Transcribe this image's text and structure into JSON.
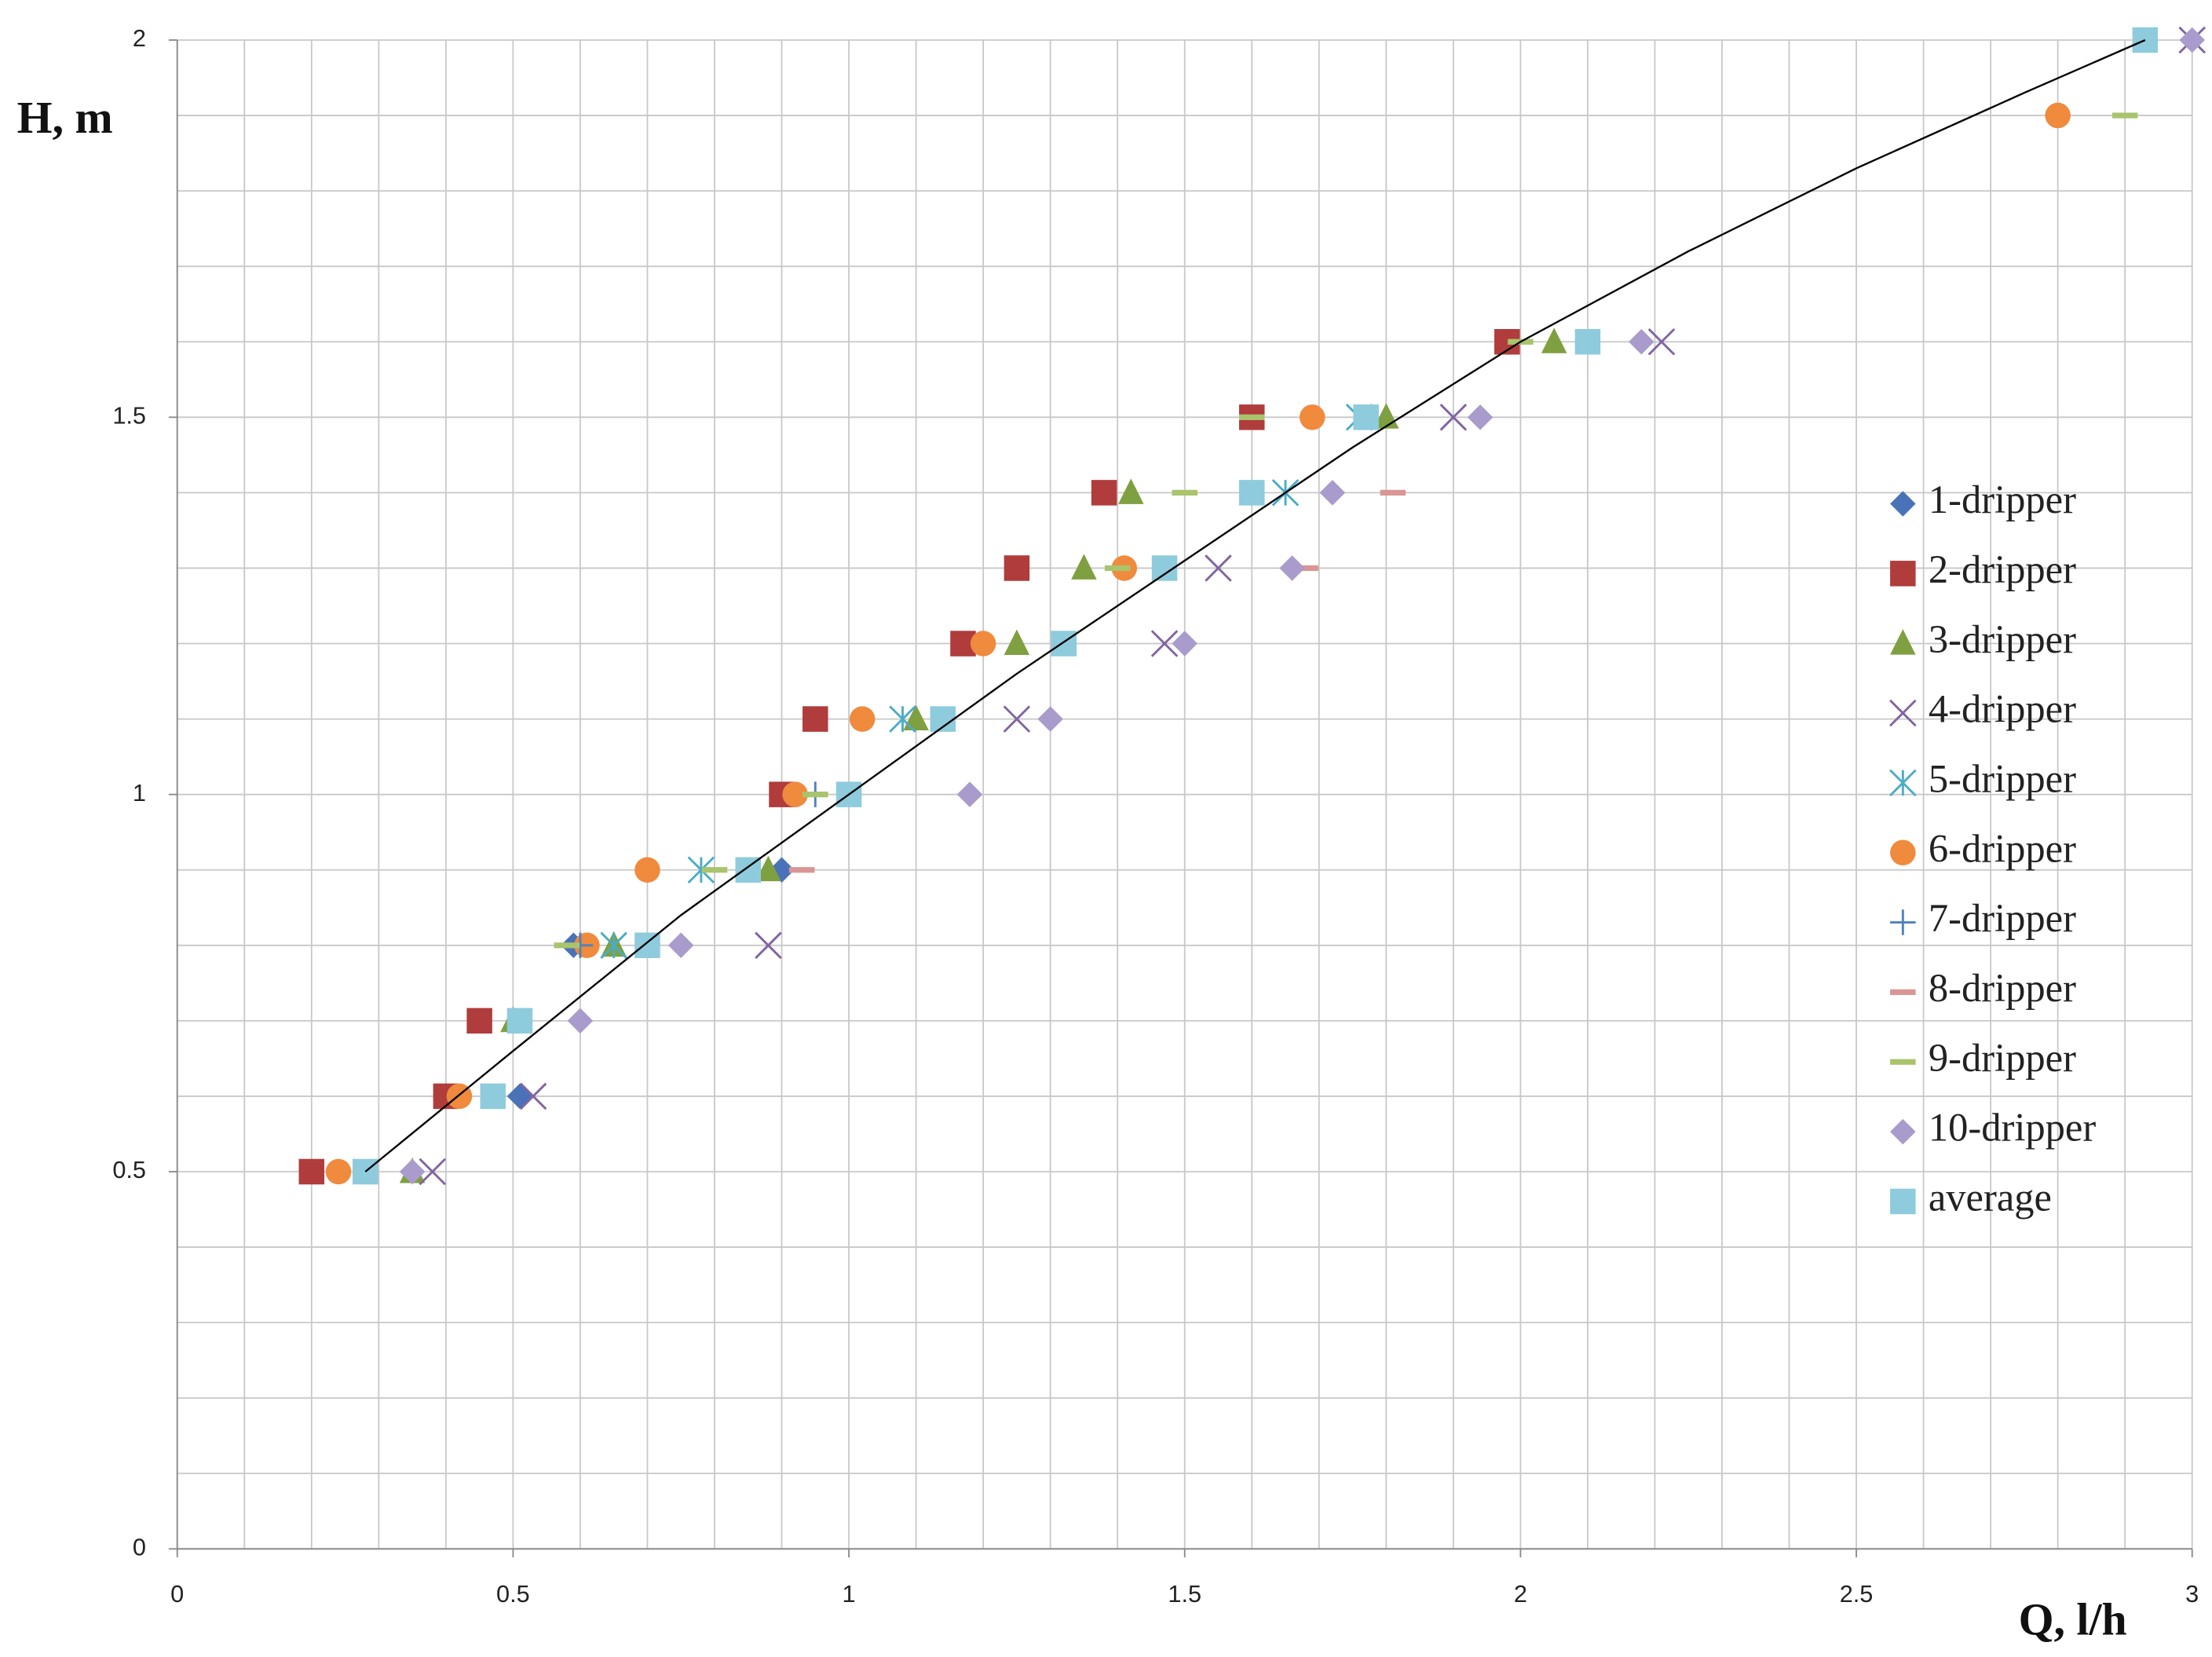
{
  "chart_data": {
    "type": "scatter",
    "x_label": "Q, l/h",
    "y_label": "H, m",
    "xlim": [
      0,
      3
    ],
    "ylim": [
      0,
      2
    ],
    "xticks": [
      0,
      0.5,
      1,
      1.5,
      2,
      2.5,
      3
    ],
    "yticks": [
      0,
      0.5,
      1,
      1.5,
      2
    ],
    "grid": true,
    "minor_grid_per_tick": 5,
    "legend": "right",
    "series": [
      {
        "name": "1-dripper",
        "color": "#4a72b8",
        "marker": "diamond",
        "x": [
          0.51,
          0.9,
          0.59
        ],
        "y": [
          0.6,
          0.9,
          0.8
        ]
      },
      {
        "name": "2-dripper",
        "color": "#b03c3c",
        "marker": "square",
        "x": [
          0.2,
          0.4,
          0.45,
          0.9,
          0.95,
          1.17,
          1.25,
          1.38,
          1.6,
          1.98
        ],
        "y": [
          0.5,
          0.6,
          0.7,
          1.0,
          1.1,
          1.2,
          1.3,
          1.4,
          1.5,
          1.6
        ]
      },
      {
        "name": "3-dripper",
        "color": "#7fa040",
        "marker": "triangle",
        "x": [
          0.35,
          0.5,
          0.65,
          0.88,
          1.1,
          1.25,
          1.35,
          1.42,
          1.8,
          2.05
        ],
        "y": [
          0.5,
          0.7,
          0.8,
          0.9,
          1.1,
          1.2,
          1.3,
          1.4,
          1.5,
          1.6
        ]
      },
      {
        "name": "4-dripper",
        "color": "#8064a2",
        "marker": "x",
        "x": [
          0.38,
          0.53,
          0.88,
          1.25,
          1.47,
          1.55,
          1.9,
          2.21,
          3.0
        ],
        "y": [
          0.5,
          0.6,
          0.8,
          1.1,
          1.2,
          1.3,
          1.5,
          1.6,
          2.0
        ]
      },
      {
        "name": "5-dripper",
        "color": "#4bacc6",
        "marker": "asterisk",
        "x": [
          0.65,
          0.78,
          1.08,
          1.65,
          1.76
        ],
        "y": [
          0.8,
          0.9,
          1.1,
          1.4,
          1.5
        ]
      },
      {
        "name": "6-dripper",
        "color": "#f08a3c",
        "marker": "circle",
        "x": [
          0.24,
          0.42,
          0.61,
          0.7,
          0.92,
          1.02,
          1.2,
          1.41,
          1.69,
          2.8
        ],
        "y": [
          0.5,
          0.6,
          0.8,
          0.9,
          1.0,
          1.1,
          1.2,
          1.3,
          1.5,
          1.9
        ]
      },
      {
        "name": "7-dripper",
        "color": "#4f81bd",
        "marker": "plus",
        "x": [
          0.95,
          0.6
        ],
        "y": [
          1.0,
          0.8
        ]
      },
      {
        "name": "8-dripper",
        "color": "#d99694",
        "marker": "dash",
        "x": [
          0.93,
          1.81,
          1.68
        ],
        "y": [
          0.9,
          1.4,
          1.3
        ]
      },
      {
        "name": "9-dripper",
        "color": "#a9c46c",
        "marker": "dash",
        "x": [
          0.8,
          0.95,
          1.4,
          1.5,
          1.6,
          2.0,
          2.9,
          0.58
        ],
        "y": [
          0.9,
          1.0,
          1.3,
          1.4,
          1.5,
          1.6,
          1.9,
          0.8
        ]
      },
      {
        "name": "10-dripper",
        "color": "#a99bcb",
        "marker": "diamond",
        "x": [
          0.35,
          0.6,
          0.75,
          1.18,
          1.3,
          1.5,
          1.66,
          1.72,
          1.94,
          2.18,
          3.0
        ],
        "y": [
          0.5,
          0.7,
          0.8,
          1.0,
          1.1,
          1.2,
          1.3,
          1.4,
          1.5,
          1.6,
          2.0
        ]
      },
      {
        "name": "average",
        "color": "#8ecbdd",
        "marker": "square",
        "x": [
          0.28,
          0.47,
          0.51,
          0.7,
          0.85,
          1.0,
          1.14,
          1.32,
          1.47,
          1.6,
          1.77,
          2.1,
          2.93
        ],
        "y": [
          0.5,
          0.6,
          0.7,
          0.8,
          0.9,
          1.0,
          1.1,
          1.2,
          1.3,
          1.4,
          1.5,
          1.6,
          2.0
        ]
      }
    ],
    "trendline": {
      "color": "#000000",
      "x": [
        0.28,
        0.5,
        0.75,
        1,
        1.25,
        1.5,
        1.75,
        2,
        2.25,
        2.5,
        2.75,
        2.93
      ],
      "y": [
        0.5,
        0.66,
        0.84,
        1.0,
        1.16,
        1.31,
        1.46,
        1.6,
        1.72,
        1.83,
        1.93,
        2.0
      ]
    }
  }
}
